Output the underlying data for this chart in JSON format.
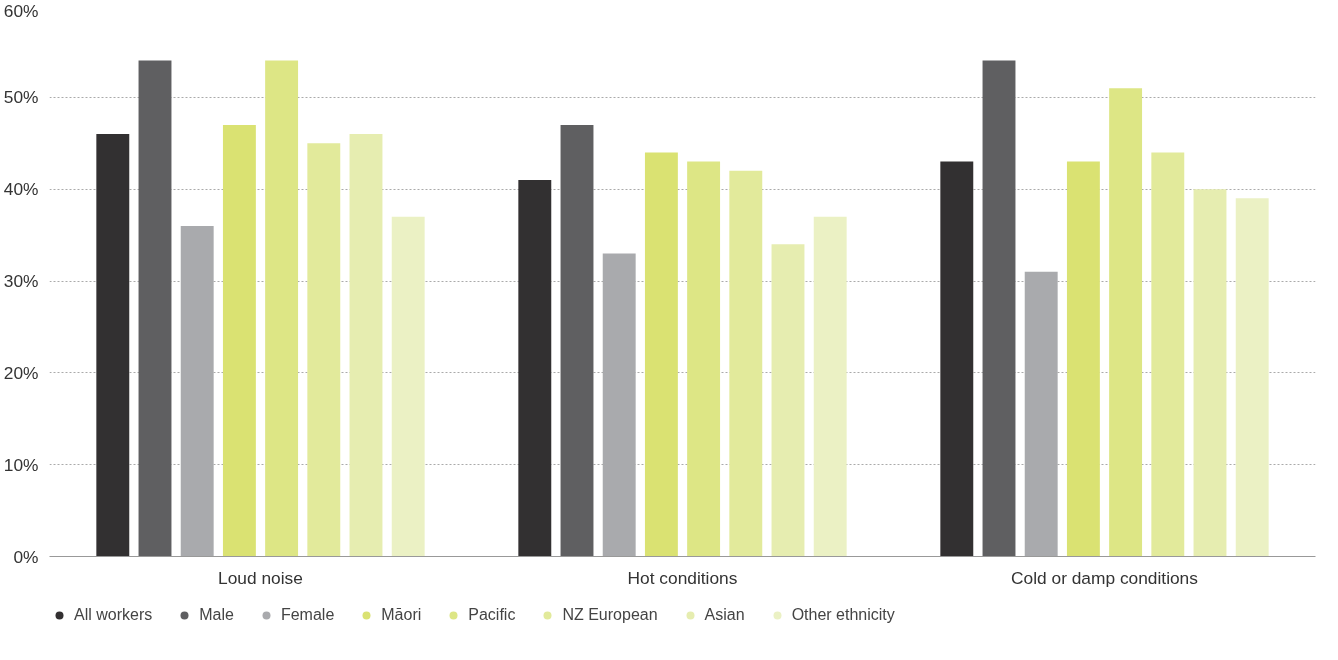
{
  "chart_data": {
    "type": "bar",
    "categories": [
      "Loud noise",
      "Hot conditions",
      "Cold or damp conditions"
    ],
    "series": [
      {
        "name": "All workers",
        "color": "#323031",
        "values": [
          46,
          41,
          43
        ]
      },
      {
        "name": "Male",
        "color": "#5f5f61",
        "values": [
          54,
          47,
          54
        ]
      },
      {
        "name": "Female",
        "color": "#a9aaad",
        "values": [
          36,
          33,
          31
        ]
      },
      {
        "name": "Māori",
        "color": "#dae272",
        "values": [
          47,
          44,
          43
        ]
      },
      {
        "name": "Pacific",
        "color": "#dde685",
        "values": [
          54,
          43,
          51
        ]
      },
      {
        "name": "NZ European",
        "color": "#e2ea9b",
        "values": [
          45,
          42,
          44
        ]
      },
      {
        "name": "Asian",
        "color": "#e6edb0",
        "values": [
          46,
          34,
          40
        ]
      },
      {
        "name": "Other ethnicity",
        "color": "#ebf1c4",
        "values": [
          37,
          37,
          39
        ]
      }
    ],
    "ylim": [
      0,
      60
    ],
    "yticks": [
      {
        "value": 0,
        "label": "0%"
      },
      {
        "value": 10,
        "label": "10%"
      },
      {
        "value": 20,
        "label": "20%"
      },
      {
        "value": 30,
        "label": "30%"
      },
      {
        "value": 40,
        "label": "40%"
      },
      {
        "value": 50,
        "label": "50%"
      },
      {
        "value": 60,
        "label": "60%"
      }
    ],
    "grid": "y",
    "legend": "bottom"
  }
}
